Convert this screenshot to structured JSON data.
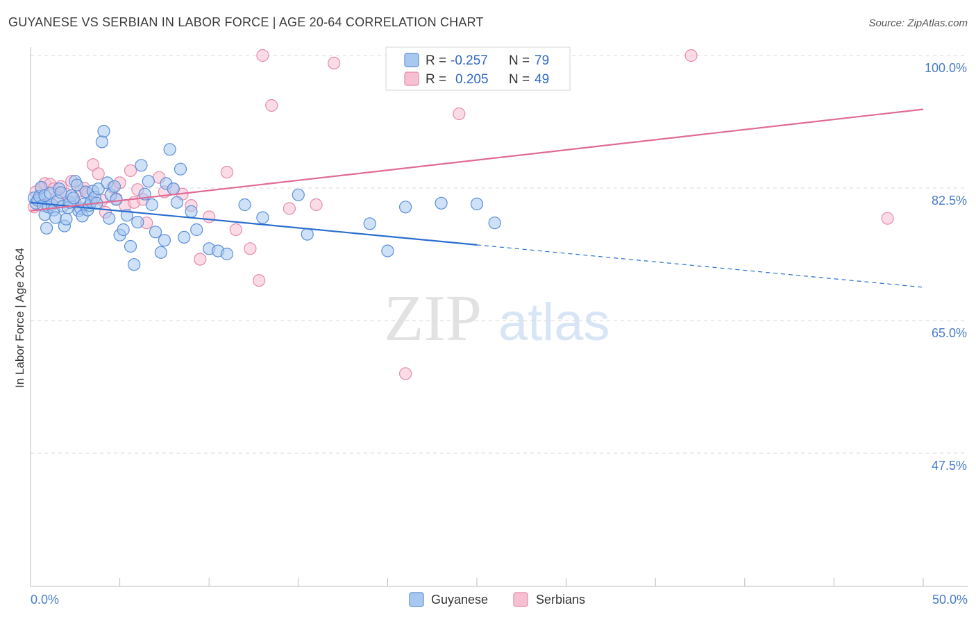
{
  "chart_data": {
    "type": "scatter",
    "title": "GUYANESE VS SERBIAN IN LABOR FORCE | AGE 20-64 CORRELATION CHART",
    "source": "Source: ZipAtlas.com",
    "ylabel": "In Labor Force | Age 20-64",
    "xlabel": "",
    "xlim": [
      0,
      50
    ],
    "ylim": [
      30,
      101.5
    ],
    "y_ticks": [
      {
        "value": 100.0,
        "label": "100.0%"
      },
      {
        "value": 82.5,
        "label": "82.5%"
      },
      {
        "value": 65.0,
        "label": "65.0%"
      },
      {
        "value": 47.5,
        "label": "47.5%"
      }
    ],
    "x_tick_labels": {
      "min": "0.0%",
      "max": "50.0%"
    },
    "watermark": {
      "zip": "ZIP",
      "atlas": "atlas"
    },
    "legend": {
      "rows": [
        {
          "r_label": "R =",
          "r_value": "-0.257",
          "n_label": "N =",
          "n_value": "79"
        },
        {
          "r_label": "R =",
          "r_value": "0.205",
          "n_label": "N =",
          "n_value": "49"
        }
      ]
    },
    "colors": {
      "guyanese_fill": "#a8c8f0",
      "guyanese_stroke": "#5b8fd8",
      "guyanese_line": "#2a6dd0",
      "serbian_fill": "#f7bfd2",
      "serbian_stroke": "#e58aac",
      "serbian_line": "#e06a95",
      "tick_text": "#4a7cc9"
    },
    "series": [
      {
        "name": "Guyanese",
        "r": -0.257,
        "n": 79,
        "trend": {
          "x0": 0,
          "y0": 80.6,
          "x1": 25,
          "y1": 75.0,
          "dash_to_x": 50,
          "dash_to_y": 69.4
        },
        "points": [
          [
            0.2,
            81.2
          ],
          [
            0.3,
            80.5
          ],
          [
            0.4,
            80.9
          ],
          [
            0.5,
            81.4
          ],
          [
            0.6,
            82.6
          ],
          [
            0.7,
            80.2
          ],
          [
            0.8,
            79.0
          ],
          [
            0.8,
            81.5
          ],
          [
            0.9,
            77.2
          ],
          [
            1.0,
            80.0
          ],
          [
            1.1,
            81.8
          ],
          [
            1.2,
            80.3
          ],
          [
            1.3,
            79.6
          ],
          [
            1.4,
            78.6
          ],
          [
            1.5,
            80.8
          ],
          [
            1.6,
            82.4
          ],
          [
            1.7,
            81.9
          ],
          [
            1.8,
            80.1
          ],
          [
            1.9,
            77.5
          ],
          [
            2.0,
            78.4
          ],
          [
            2.1,
            79.9
          ],
          [
            2.2,
            80.6
          ],
          [
            2.3,
            81.5
          ],
          [
            2.4,
            81.2
          ],
          [
            2.5,
            83.4
          ],
          [
            2.6,
            82.9
          ],
          [
            2.7,
            79.5
          ],
          [
            2.8,
            79.8
          ],
          [
            2.9,
            78.8
          ],
          [
            3.0,
            80.4
          ],
          [
            3.1,
            82.0
          ],
          [
            3.2,
            79.6
          ],
          [
            3.3,
            80.2
          ],
          [
            3.4,
            80.7
          ],
          [
            3.5,
            82.1
          ],
          [
            3.6,
            81.3
          ],
          [
            3.7,
            80.5
          ],
          [
            3.8,
            82.4
          ],
          [
            4.0,
            88.6
          ],
          [
            4.1,
            90.0
          ],
          [
            4.3,
            83.2
          ],
          [
            4.4,
            78.5
          ],
          [
            4.5,
            81.6
          ],
          [
            4.7,
            82.7
          ],
          [
            4.8,
            81.0
          ],
          [
            5.0,
            76.3
          ],
          [
            5.2,
            77.0
          ],
          [
            5.4,
            78.9
          ],
          [
            5.6,
            74.8
          ],
          [
            5.8,
            72.4
          ],
          [
            6.0,
            78.0
          ],
          [
            6.2,
            85.5
          ],
          [
            6.4,
            81.7
          ],
          [
            6.6,
            83.4
          ],
          [
            6.8,
            80.3
          ],
          [
            7.0,
            76.7
          ],
          [
            7.3,
            74.0
          ],
          [
            7.5,
            75.6
          ],
          [
            7.6,
            83.1
          ],
          [
            7.8,
            87.6
          ],
          [
            8.0,
            82.4
          ],
          [
            8.2,
            80.6
          ],
          [
            8.4,
            85.0
          ],
          [
            8.6,
            76.0
          ],
          [
            9.0,
            79.4
          ],
          [
            9.3,
            77.0
          ],
          [
            10.0,
            74.5
          ],
          [
            10.5,
            74.2
          ],
          [
            11.0,
            73.8
          ],
          [
            12.0,
            80.3
          ],
          [
            13.0,
            78.6
          ],
          [
            15.0,
            81.6
          ],
          [
            15.5,
            76.4
          ],
          [
            19.0,
            77.8
          ],
          [
            20.0,
            74.2
          ],
          [
            21.0,
            80.0
          ],
          [
            23.0,
            80.5
          ],
          [
            25.0,
            80.4
          ],
          [
            26.0,
            77.9
          ]
        ]
      },
      {
        "name": "Serbians",
        "r": 0.205,
        "n": 49,
        "trend": {
          "x0": 0,
          "y0": 79.5,
          "x1": 50,
          "y1": 92.9
        },
        "points": [
          [
            0.2,
            80.0
          ],
          [
            0.3,
            82.0
          ],
          [
            0.4,
            80.9
          ],
          [
            0.6,
            82.4
          ],
          [
            0.8,
            83.1
          ],
          [
            0.9,
            80.2
          ],
          [
            1.1,
            83.0
          ],
          [
            1.3,
            82.4
          ],
          [
            1.5,
            81.3
          ],
          [
            1.7,
            82.7
          ],
          [
            2.0,
            81.7
          ],
          [
            2.3,
            83.4
          ],
          [
            2.5,
            80.6
          ],
          [
            2.8,
            82.1
          ],
          [
            3.0,
            82.5
          ],
          [
            3.2,
            81.8
          ],
          [
            3.5,
            85.6
          ],
          [
            3.8,
            84.4
          ],
          [
            4.0,
            80.9
          ],
          [
            4.2,
            79.3
          ],
          [
            4.6,
            82.6
          ],
          [
            4.8,
            81.1
          ],
          [
            5.0,
            83.2
          ],
          [
            5.3,
            80.2
          ],
          [
            5.6,
            84.8
          ],
          [
            5.8,
            80.6
          ],
          [
            6.0,
            82.3
          ],
          [
            6.3,
            81.0
          ],
          [
            6.5,
            77.9
          ],
          [
            7.2,
            83.9
          ],
          [
            7.5,
            82.0
          ],
          [
            8.0,
            82.4
          ],
          [
            8.5,
            81.7
          ],
          [
            9.0,
            80.2
          ],
          [
            9.5,
            73.1
          ],
          [
            10.0,
            78.7
          ],
          [
            11.0,
            84.6
          ],
          [
            11.5,
            77.0
          ],
          [
            12.3,
            74.5
          ],
          [
            12.8,
            70.3
          ],
          [
            13.0,
            100.0
          ],
          [
            13.5,
            93.4
          ],
          [
            14.5,
            79.8
          ],
          [
            16.0,
            80.3
          ],
          [
            17.0,
            99.0
          ],
          [
            21.0,
            58.0
          ],
          [
            24.0,
            92.3
          ],
          [
            37.0,
            100.0
          ],
          [
            48.0,
            78.5
          ]
        ]
      }
    ]
  }
}
